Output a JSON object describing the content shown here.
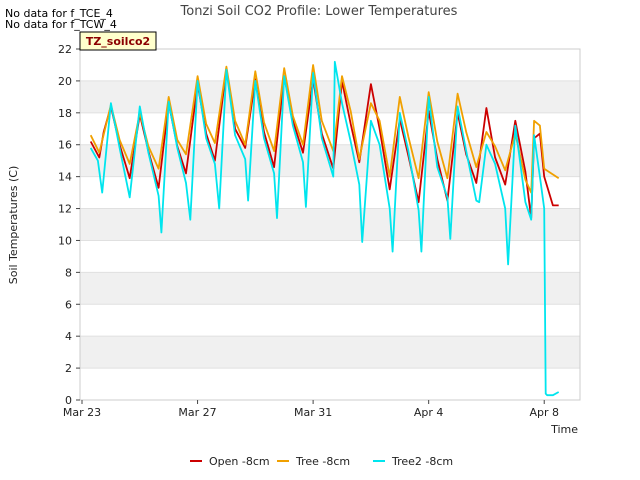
{
  "notes": [
    "No data for f_TCE_4",
    "No data for f_TCW_4"
  ],
  "chart_data": {
    "type": "line",
    "title": "Tonzi Soil CO2 Profile: Lower Temperatures",
    "xlabel": "Time",
    "ylabel": "Soil Temperatures (C)",
    "ylim": [
      0,
      22
    ],
    "yticks": [
      0,
      2,
      4,
      6,
      8,
      10,
      12,
      14,
      16,
      18,
      20,
      22
    ],
    "xlim": [
      "2024-03-23",
      "2024-04-09"
    ],
    "xtick_labels": [
      "Mar 23",
      "Mar 27",
      "Mar 31",
      "Apr 4",
      "Apr 8"
    ],
    "xtick_days": [
      0,
      4,
      8,
      12,
      16
    ],
    "grid": "horizontal bands",
    "legend_position": "bottom",
    "annotation": "TZ_soilco2",
    "series": [
      {
        "name": "Open -8cm",
        "color": "#cc0000",
        "x_days": [
          0.3,
          0.6,
          0.75,
          1,
          1.3,
          1.65,
          2,
          2.3,
          2.65,
          3,
          3.3,
          3.6,
          4,
          4.3,
          4.6,
          5,
          5.3,
          5.65,
          6,
          6.3,
          6.65,
          7,
          7.3,
          7.65,
          8,
          8.3,
          8.7,
          9,
          9.3,
          9.6,
          10,
          10.3,
          10.65,
          11,
          11.3,
          11.65,
          12,
          12.3,
          12.65,
          13,
          13.3,
          13.65,
          14,
          14.3,
          14.65,
          15,
          15.35,
          15.55,
          15.65,
          15.85,
          16,
          16.3,
          16.5
        ],
        "values": [
          16.2,
          15.2,
          16.8,
          18.4,
          16.0,
          13.9,
          17.9,
          15.6,
          13.3,
          18.6,
          15.9,
          14.2,
          19.8,
          16.7,
          15.0,
          20.8,
          17.0,
          15.8,
          20.1,
          16.8,
          14.6,
          20.3,
          17.5,
          15.5,
          20.1,
          16.7,
          14.5,
          20.0,
          17.3,
          14.9,
          19.8,
          17.0,
          13.2,
          17.6,
          15.3,
          12.4,
          18.1,
          15.1,
          12.5,
          18.0,
          15.4,
          13.6,
          18.3,
          15.2,
          13.5,
          17.5,
          14.3,
          11.4,
          16.4,
          16.7,
          14.0,
          12.2,
          12.2
        ]
      },
      {
        "name": "Tree -8cm",
        "color": "#f0a000",
        "x_days": [
          0.3,
          0.6,
          1,
          1.3,
          1.65,
          2,
          2.3,
          2.65,
          3,
          3.3,
          3.6,
          4,
          4.3,
          4.6,
          5,
          5.3,
          5.65,
          6,
          6.3,
          6.65,
          7,
          7.3,
          7.65,
          8,
          8.3,
          8.7,
          9,
          9.3,
          9.6,
          10,
          10.3,
          10.65,
          11,
          11.3,
          11.65,
          12,
          12.3,
          12.65,
          13,
          13.3,
          13.65,
          14,
          14.3,
          14.65,
          15,
          15.35,
          15.55,
          15.65,
          15.85,
          16,
          16.5
        ],
        "values": [
          16.6,
          15.5,
          18.5,
          16.3,
          14.8,
          18.0,
          15.9,
          14.5,
          19.0,
          16.3,
          15.4,
          20.3,
          17.3,
          16.1,
          20.9,
          17.5,
          16.0,
          20.6,
          17.4,
          15.6,
          20.8,
          17.8,
          16.0,
          21.0,
          17.5,
          15.6,
          20.3,
          18.1,
          15.1,
          18.6,
          17.5,
          14.0,
          19.0,
          16.5,
          13.9,
          19.3,
          16.2,
          13.9,
          19.2,
          16.8,
          14.6,
          16.8,
          15.9,
          14.4,
          16.7,
          13.8,
          13.0,
          17.5,
          17.2,
          14.5,
          13.9
        ]
      },
      {
        "name": "Tree2 -8cm",
        "color": "#00e5ee",
        "x_days": [
          0.3,
          0.55,
          0.7,
          1,
          1.3,
          1.65,
          2,
          2.3,
          2.65,
          2.75,
          3,
          3.3,
          3.6,
          3.75,
          4,
          4.3,
          4.6,
          4.75,
          5,
          5.3,
          5.65,
          5.75,
          6,
          6.3,
          6.65,
          6.75,
          7,
          7.3,
          7.65,
          7.75,
          8,
          8.3,
          8.7,
          8.75,
          9,
          9.3,
          9.6,
          9.7,
          10,
          10.3,
          10.65,
          10.75,
          11,
          11.3,
          11.65,
          11.75,
          12,
          12.3,
          12.65,
          12.75,
          13,
          13.3,
          13.65,
          13.75,
          14,
          14.3,
          14.65,
          14.75,
          15,
          15.35,
          15.55,
          15.65,
          15.85,
          16,
          16.05,
          16.1,
          16.3,
          16.5
        ],
        "values": [
          15.8,
          15.0,
          13.0,
          18.6,
          15.8,
          12.7,
          18.4,
          15.5,
          12.8,
          10.5,
          18.7,
          15.8,
          13.6,
          11.3,
          20.0,
          16.4,
          14.8,
          12.0,
          20.7,
          16.6,
          15.1,
          12.5,
          20.0,
          16.4,
          14.2,
          11.4,
          20.3,
          17.2,
          14.9,
          12.1,
          20.5,
          16.4,
          14.0,
          21.2,
          18.6,
          16.2,
          13.5,
          9.9,
          17.5,
          16.0,
          12.0,
          9.3,
          18.0,
          15.6,
          11.9,
          9.3,
          19.0,
          14.6,
          12.7,
          10.1,
          18.4,
          15.6,
          12.5,
          12.4,
          16.0,
          14.8,
          12.0,
          8.5,
          17.2,
          12.4,
          11.3,
          16.6,
          14.0,
          12.0,
          0.4,
          0.3,
          0.3,
          0.5
        ]
      }
    ]
  }
}
